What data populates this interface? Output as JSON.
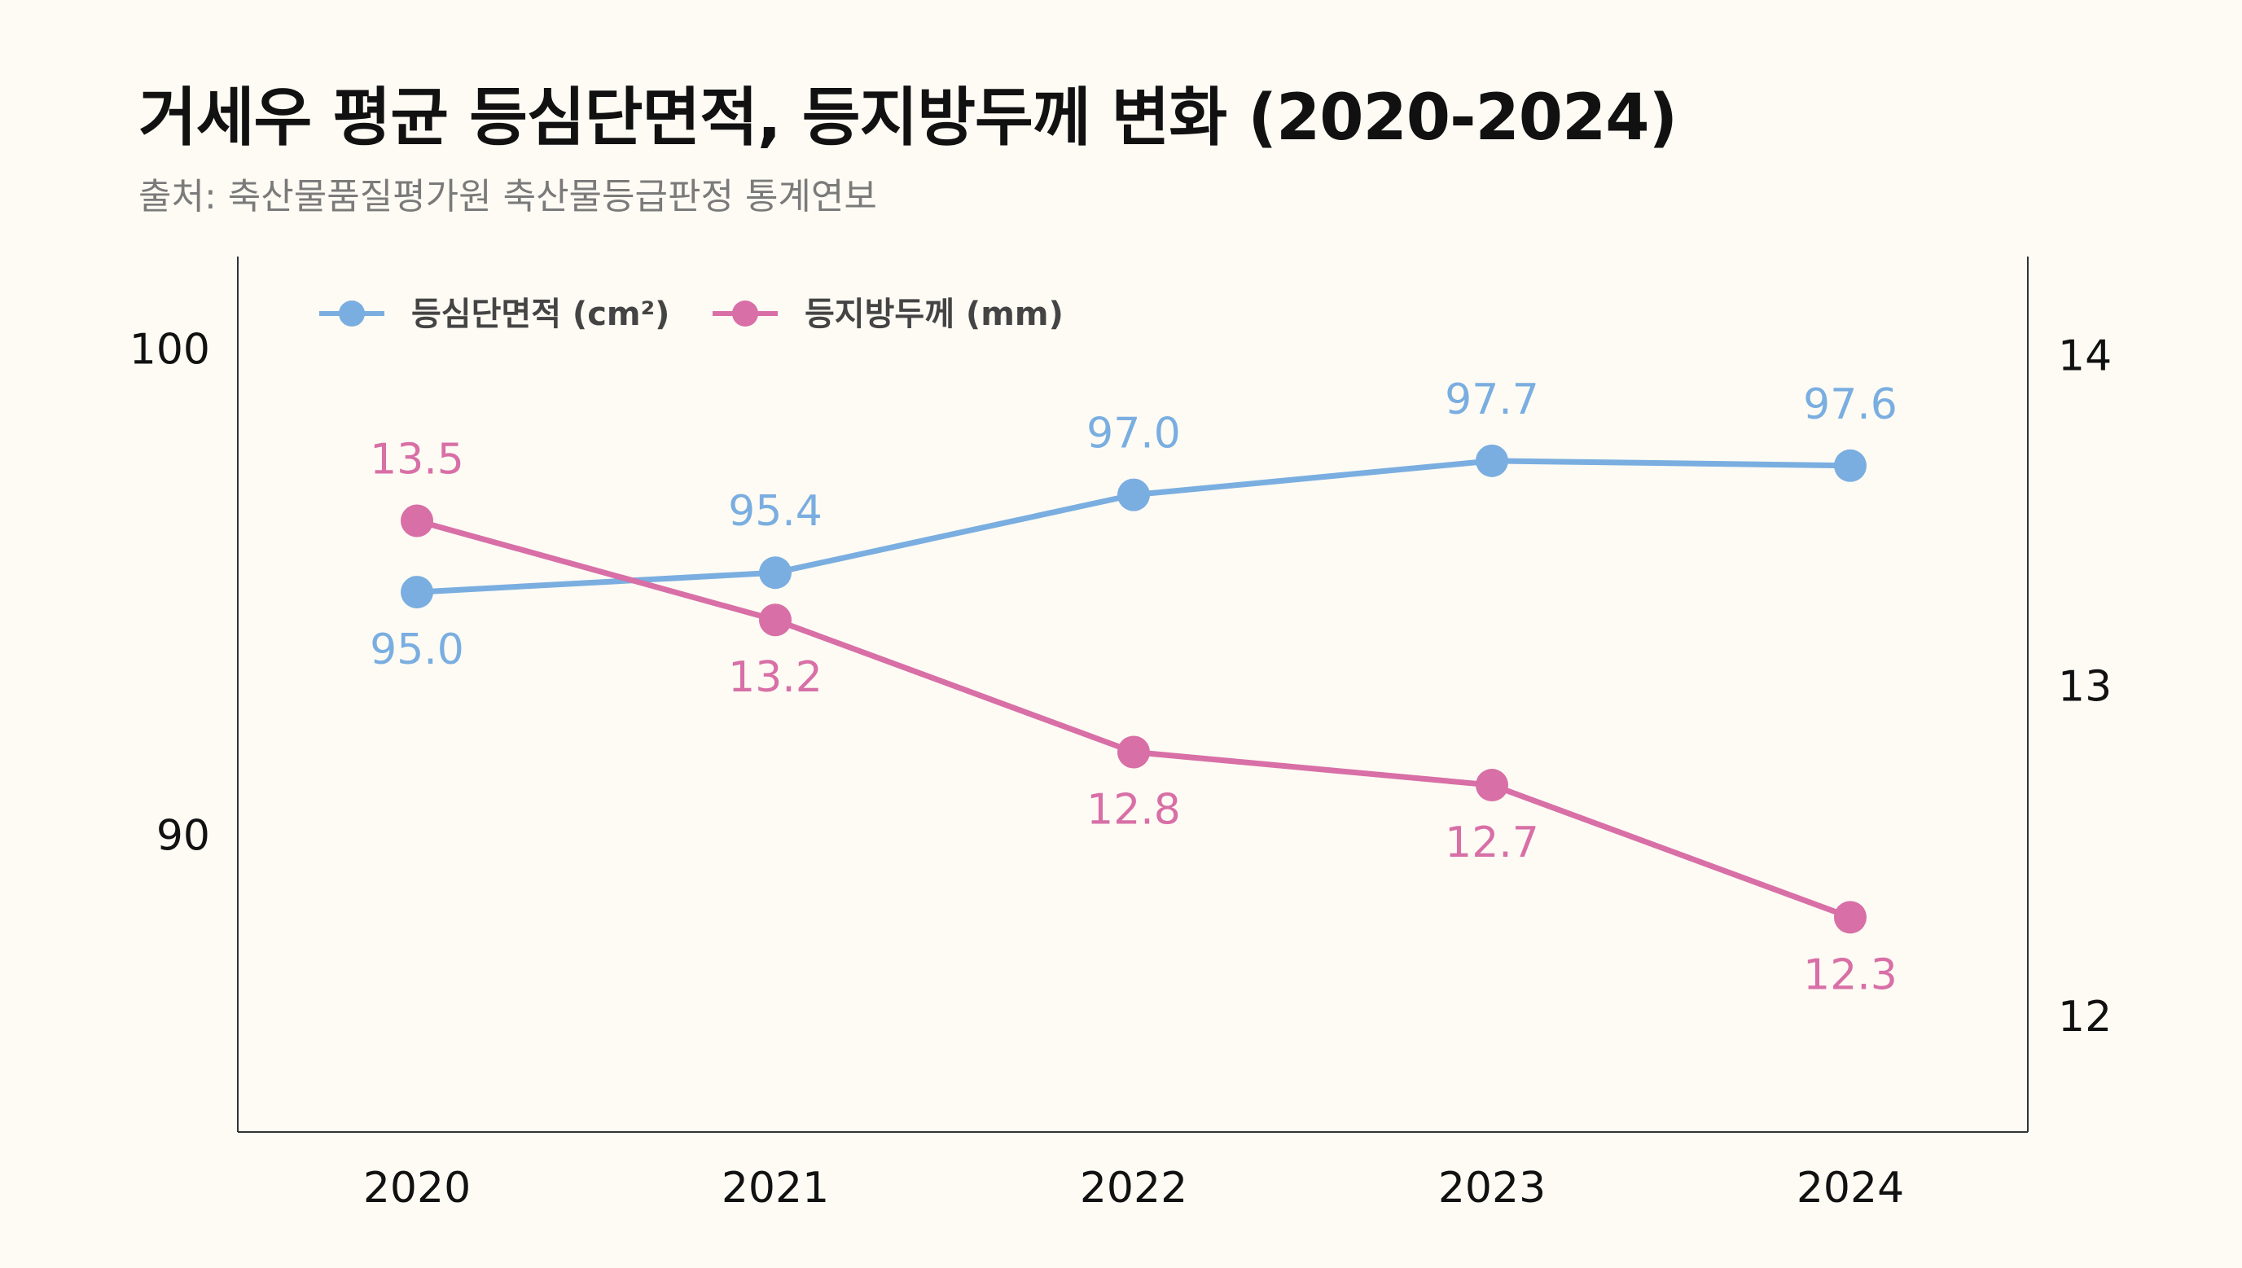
{
  "title": "거세우 평균 등심단면적, 등지방두께 변화 (2020-2024)",
  "subtitle": "출처: 축산물품질평가원 축산물등급판정 통계연보",
  "chart_data": {
    "type": "line",
    "title": "거세우 평균 등심단면적, 등지방두께 변화 (2020-2024)",
    "x": [
      "2020",
      "2021",
      "2022",
      "2023",
      "2024"
    ],
    "series": [
      {
        "name": "등심단면적 (cm²)",
        "axis": "left",
        "color": "#7aaee0",
        "values": [
          95.0,
          95.4,
          97.0,
          97.7,
          97.6
        ],
        "labels": [
          "95.0",
          "95.4",
          "97.0",
          "97.7",
          "97.6"
        ]
      },
      {
        "name": "등지방두께 (mm)",
        "axis": "right",
        "color": "#d86fa6",
        "values": [
          13.5,
          13.2,
          12.8,
          12.7,
          12.3
        ],
        "labels": [
          "13.5",
          "13.2",
          "12.8",
          "12.7",
          "12.3"
        ]
      }
    ],
    "y_left": {
      "ticks": [
        "90",
        "100"
      ],
      "ylim": [
        83.9,
        101.9
      ]
    },
    "y_right": {
      "ticks": [
        "12",
        "13",
        "14"
      ],
      "ylim": [
        11.65,
        14.3
      ]
    },
    "grid": false,
    "legend": "top-left"
  }
}
